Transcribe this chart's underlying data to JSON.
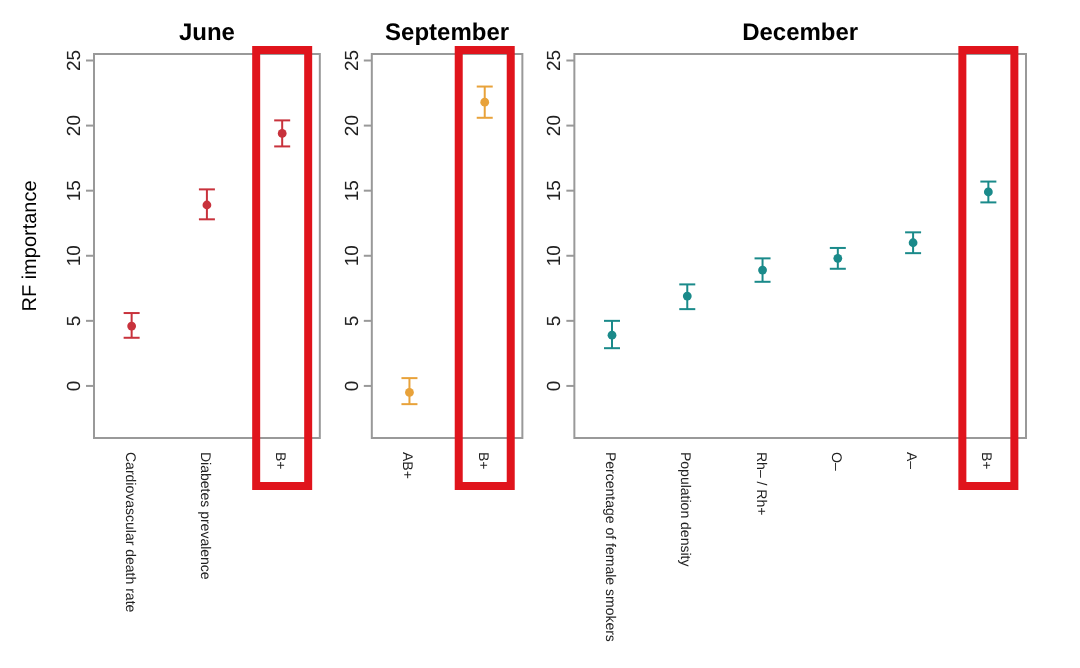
{
  "chart_data": [
    {
      "type": "scatter",
      "title": "June",
      "ylabel": "RF importance",
      "categories": [
        "Cardiovascular death rate",
        "Diabetes prevalence",
        "B+"
      ],
      "marker": "circle",
      "series": [
        {
          "color": "#c8323c",
          "values": [
            4.6,
            13.9,
            19.4
          ],
          "errors": [
            [
              3.7,
              5.6
            ],
            [
              12.8,
              15.1
            ],
            [
              18.4,
              20.4
            ]
          ]
        }
      ],
      "ylim": [
        -4,
        25.5
      ],
      "yticks": [
        0,
        5,
        10,
        15,
        20,
        25
      ]
    },
    {
      "type": "scatter",
      "title": "September",
      "categories": [
        "AB+",
        "B+"
      ],
      "marker": "circle",
      "series": [
        {
          "color": "#e8a23a",
          "values": [
            -0.5,
            21.8
          ],
          "errors": [
            [
              -1.4,
              0.6
            ],
            [
              20.6,
              23.0
            ]
          ]
        }
      ],
      "ylim": [
        -4,
        25.5
      ],
      "yticks": [
        0,
        5,
        10,
        15,
        20,
        25
      ]
    },
    {
      "type": "scatter",
      "title": "December",
      "categories": [
        "Percentage of female smokers",
        "Population density",
        "Rh– / Rh+",
        "O–",
        "A–",
        "B+"
      ],
      "marker": "circle",
      "series": [
        {
          "color": "#1a8a8a",
          "values": [
            3.9,
            6.9,
            8.9,
            9.8,
            11.0,
            14.9
          ],
          "errors": [
            [
              2.9,
              5.0
            ],
            [
              5.9,
              7.8
            ],
            [
              8.0,
              9.8
            ],
            [
              9.0,
              10.6
            ],
            [
              10.2,
              11.8
            ],
            [
              14.1,
              15.7
            ]
          ]
        }
      ],
      "ylim": [
        -4,
        25.5
      ],
      "yticks": [
        0,
        5,
        10,
        15,
        20,
        25
      ]
    }
  ]
}
